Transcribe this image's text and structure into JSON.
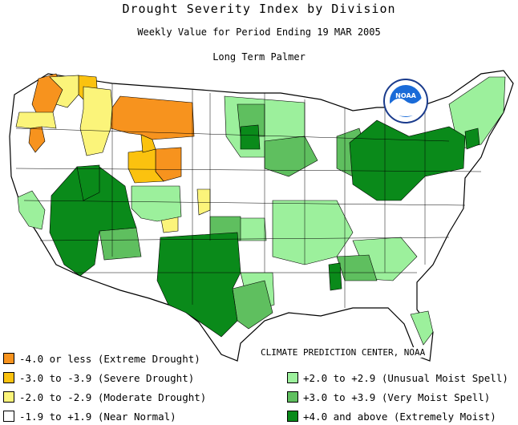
{
  "header": {
    "title": "Drought Severity Index by Division",
    "subtitle": "Weekly Value for Period Ending 19 MAR 2005",
    "index_name": "Long Term Palmer"
  },
  "logo": {
    "text": "NOAA"
  },
  "credit": "CLIMATE PREDICTION CENTER, NOAA",
  "colors": {
    "extreme_drought": "#f7931e",
    "severe_drought": "#fbc20f",
    "moderate_drought": "#fbf47a",
    "near_normal": "#ffffff",
    "unusual_moist": "#9cf09c",
    "very_moist": "#5fbf5f",
    "extremely_moist": "#0a8a1a"
  },
  "legend": {
    "left": [
      {
        "label": "-4.0 or less (Extreme Drought)",
        "color": "#f7931e"
      },
      {
        "label": "-3.0 to -3.9 (Severe Drought)",
        "color": "#fbc20f"
      },
      {
        "label": "-2.0 to -2.9 (Moderate Drought)",
        "color": "#fbf47a"
      },
      {
        "label": "-1.9 to +1.9 (Near Normal)",
        "color": "#ffffff"
      }
    ],
    "right": [
      {
        "label": "+2.0 to +2.9 (Unusual Moist Spell)",
        "color": "#9cf09c"
      },
      {
        "label": "+3.0 to +3.9 (Very Moist Spell)",
        "color": "#5fbf5f"
      },
      {
        "label": "+4.0 and above (Extremely Moist)",
        "color": "#0a8a1a"
      }
    ]
  }
}
